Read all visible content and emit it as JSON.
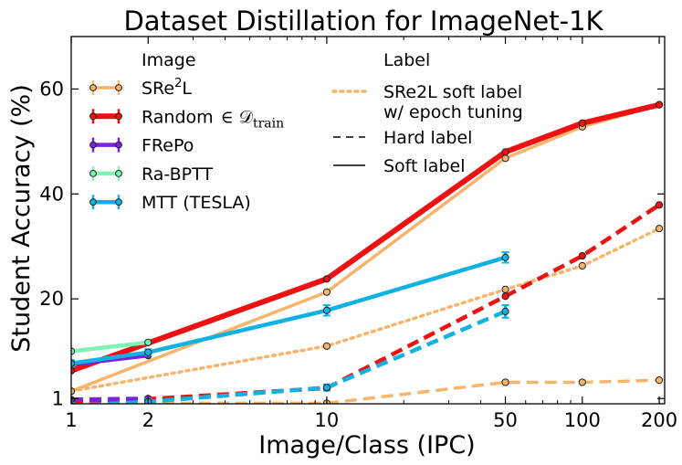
{
  "chart_data": {
    "type": "line",
    "title": "Dataset Distillation for ImageNet-1K",
    "xlabel": "Image/Class (IPC)",
    "ylabel": "Student Accuracy (%)",
    "xscale": "log",
    "xlim": [
      1,
      210
    ],
    "ylim": [
      0,
      70
    ],
    "xticks": [
      1,
      2,
      10,
      50,
      100,
      200
    ],
    "xtick_labels": [
      "1",
      "2",
      "10",
      "50",
      "100",
      "200"
    ],
    "yticks": [
      1,
      20,
      40,
      60
    ],
    "ytick_labels": [
      "1",
      "20",
      "40",
      "60"
    ],
    "legend_image_title": "Image",
    "legend_label_title": "Label",
    "series": [
      {
        "id": "sre2l-soft",
        "method": "SRe2L",
        "label_type": "soft",
        "color": "#f8b46a",
        "width": 3.5,
        "marker": true,
        "x": [
          1,
          10,
          50,
          100,
          200
        ],
        "y": [
          2.4,
          21.3,
          46.8,
          52.8,
          57.0
        ]
      },
      {
        "id": "sre2l-hard",
        "method": "SRe2L",
        "label_type": "hard",
        "color": "#f8b46a",
        "width": 3.5,
        "marker": true,
        "x": [
          1,
          10,
          50,
          100,
          200
        ],
        "y": [
          0.1,
          0.1,
          4.1,
          4.1,
          4.5
        ]
      },
      {
        "id": "sre2l-tuned",
        "method": "SRe2L",
        "label_type": "tuned",
        "color": "#f8b46a",
        "width": 3.5,
        "marker": true,
        "x": [
          1,
          10,
          50,
          100,
          200
        ],
        "y": [
          2.4,
          11.0,
          21.8,
          26.3,
          33.4
        ]
      },
      {
        "id": "random-soft",
        "method": "Random",
        "label_type": "soft",
        "color": "#ee1111",
        "width": 6,
        "marker": true,
        "x": [
          1,
          10,
          50,
          100,
          200
        ],
        "y": [
          6.3,
          23.8,
          48.0,
          53.5,
          57.0
        ]
      },
      {
        "id": "random-hard",
        "method": "Random",
        "label_type": "hard",
        "color": "#ee1111",
        "width": 4.5,
        "marker": true,
        "x": [
          1,
          2,
          10,
          50,
          100,
          200
        ],
        "y": [
          0.5,
          0.9,
          3.0,
          20.5,
          28.2,
          37.9
        ]
      },
      {
        "id": "frepo-soft",
        "method": "FRePo",
        "label_type": "soft",
        "color": "#7722dd",
        "width": 4.5,
        "marker": true,
        "x": [
          1,
          2
        ],
        "y": [
          7.5,
          9.2
        ]
      },
      {
        "id": "frepo-hard",
        "method": "FRePo",
        "label_type": "hard",
        "color": "#7722dd",
        "width": 4.5,
        "marker": true,
        "x": [
          1,
          2
        ],
        "y": [
          0.8,
          1.0
        ]
      },
      {
        "id": "rabptt-soft",
        "method": "Ra-BPTT",
        "label_type": "soft",
        "color": "#7ff2b4",
        "width": 4.5,
        "marker": true,
        "x": [
          1,
          2
        ],
        "y": [
          10.0,
          11.7
        ]
      },
      {
        "id": "rabptt-hard",
        "method": "Ra-BPTT",
        "label_type": "hard",
        "color": "#7ff2b4",
        "width": 4.5,
        "marker": true,
        "x": [
          1,
          2
        ],
        "y": [
          -0.5,
          -0.4
        ]
      },
      {
        "id": "mtt-soft",
        "method": "MTT (TESLA)",
        "label_type": "soft",
        "color": "#11b2e2",
        "width": 4.5,
        "marker": true,
        "x": [
          1,
          2,
          10,
          50
        ],
        "y": [
          7.7,
          9.8,
          17.8,
          27.9
        ],
        "err": [
          0.2,
          0.3,
          1.0,
          1.0
        ]
      },
      {
        "id": "mtt-hard",
        "method": "MTT (TESLA)",
        "label_type": "hard",
        "color": "#11b2e2",
        "width": 4.5,
        "marker": true,
        "x": [
          1,
          2,
          10,
          50
        ],
        "y": [
          -0.4,
          0.4,
          3.1,
          17.6
        ],
        "err": [
          0.1,
          0.1,
          0.3,
          1.2
        ]
      }
    ],
    "legend_image": [
      {
        "label_main": "SRe",
        "label_sup": "2",
        "label_tail": "L",
        "color": "#f8b46a",
        "width": 3.5
      },
      {
        "label_main": "Random",
        "label_math": "∈ 𝒟",
        "label_sub": "train",
        "color": "#ee1111",
        "width": 6
      },
      {
        "label_main": "FRePo",
        "color": "#7722dd",
        "width": 4.5
      },
      {
        "label_main": "Ra-BPTT",
        "color": "#7ff2b4",
        "width": 4.5
      },
      {
        "label_main": "MTT (TESLA)",
        "color": "#11b2e2",
        "width": 4.5
      }
    ],
    "legend_label": [
      {
        "line1": "SRe2L soft label",
        "line2": "w/ epoch tuning",
        "style": "dotted",
        "color": "#f8b46a"
      },
      {
        "line1": "Hard label",
        "style": "dashed",
        "color": "#000000"
      },
      {
        "line1": "Soft label",
        "style": "solid",
        "color": "#000000"
      }
    ]
  }
}
